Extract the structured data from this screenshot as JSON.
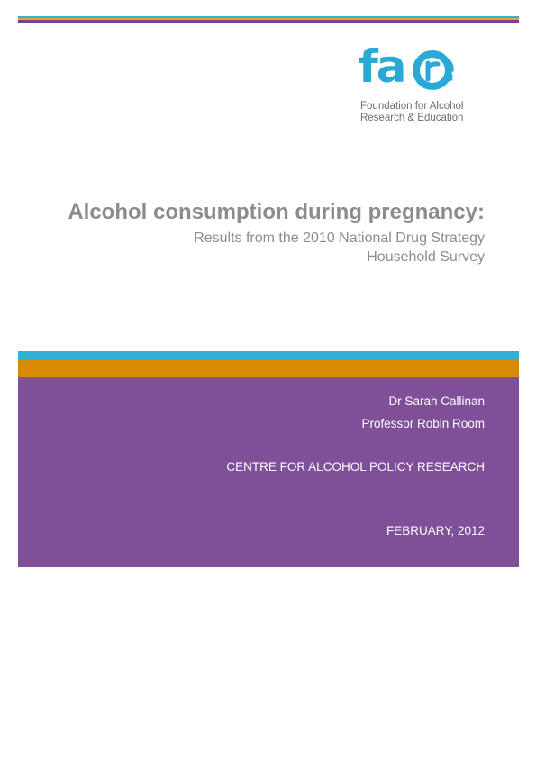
{
  "logo": {
    "wordmark": "fare",
    "tagline_line1": "Foundation for Alcohol",
    "tagline_line2": "Research & Education"
  },
  "title": "Alcohol consumption during pregnancy:",
  "subtitle_line1": "Results from the 2010 National Drug Strategy",
  "subtitle_line2": "Household Survey",
  "authors": [
    "Dr Sarah Callinan",
    "Professor Robin Room"
  ],
  "organisation": "CENTRE FOR ALCOHOL POLICY RESEARCH",
  "date": "FEBRUARY, 2012",
  "colors": {
    "brand_blue": "#2aa8d6",
    "orange": "#d88b00",
    "purple": "#7f4f98",
    "title_grey": "#8c8c8c"
  }
}
